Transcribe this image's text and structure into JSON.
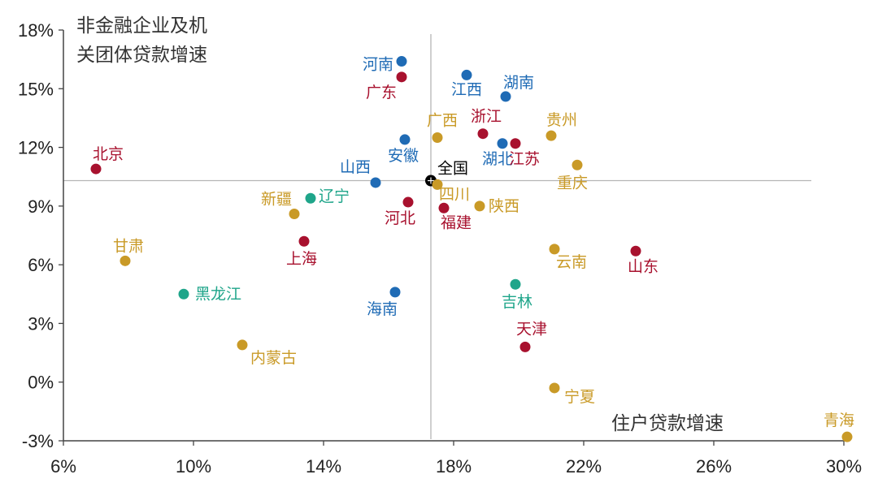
{
  "chart_data": {
    "type": "scatter",
    "title": "",
    "ylabel_lines": [
      "非金融企业及机",
      "关团体贷款增速"
    ],
    "xlabel": "住户贷款增速",
    "xlim": [
      6,
      30
    ],
    "ylim": [
      -3,
      18
    ],
    "xticks": [
      6,
      10,
      14,
      18,
      22,
      26,
      30
    ],
    "yticks": [
      -3,
      0,
      3,
      6,
      9,
      12,
      15,
      18
    ],
    "x_unit": "%",
    "y_unit": "%",
    "grid": false,
    "reference_lines": {
      "x": 17.3,
      "y": 10.3
    },
    "colors": {
      "blue": "#1f6bb5",
      "red": "#a8112e",
      "gold": "#c99a27",
      "teal": "#1fa58a",
      "black": "#000000"
    },
    "points": [
      {
        "label": "河南",
        "x": 16.4,
        "y": 16.4,
        "color": "blue"
      },
      {
        "label": "广东",
        "x": 16.4,
        "y": 15.6,
        "color": "red"
      },
      {
        "label": "江西",
        "x": 18.4,
        "y": 15.7,
        "color": "blue"
      },
      {
        "label": "湖南",
        "x": 19.6,
        "y": 14.6,
        "color": "blue"
      },
      {
        "label": "浙江",
        "x": 18.9,
        "y": 12.7,
        "color": "red"
      },
      {
        "label": "广西",
        "x": 17.5,
        "y": 12.5,
        "color": "gold"
      },
      {
        "label": "贵州",
        "x": 21.0,
        "y": 12.6,
        "color": "gold"
      },
      {
        "label": "湖北",
        "x": 19.5,
        "y": 12.2,
        "color": "blue"
      },
      {
        "label": "江苏",
        "x": 19.9,
        "y": 12.2,
        "color": "red"
      },
      {
        "label": "安徽",
        "x": 16.5,
        "y": 12.4,
        "color": "blue"
      },
      {
        "label": "北京",
        "x": 7.0,
        "y": 10.9,
        "color": "red"
      },
      {
        "label": "重庆",
        "x": 21.8,
        "y": 11.1,
        "color": "gold"
      },
      {
        "label": "山西",
        "x": 15.6,
        "y": 10.2,
        "color": "blue"
      },
      {
        "label": "全国",
        "x": 17.3,
        "y": 10.3,
        "color": "black"
      },
      {
        "label": "四川",
        "x": 17.5,
        "y": 10.1,
        "color": "gold"
      },
      {
        "label": "辽宁",
        "x": 13.6,
        "y": 9.4,
        "color": "teal"
      },
      {
        "label": "新疆",
        "x": 13.1,
        "y": 8.6,
        "color": "gold"
      },
      {
        "label": "河北",
        "x": 16.6,
        "y": 9.2,
        "color": "red"
      },
      {
        "label": "福建",
        "x": 17.7,
        "y": 8.9,
        "color": "red"
      },
      {
        "label": "陕西",
        "x": 18.8,
        "y": 9.0,
        "color": "gold"
      },
      {
        "label": "上海",
        "x": 13.4,
        "y": 7.2,
        "color": "red"
      },
      {
        "label": "甘肃",
        "x": 7.9,
        "y": 6.2,
        "color": "gold"
      },
      {
        "label": "云南",
        "x": 21.1,
        "y": 6.8,
        "color": "gold"
      },
      {
        "label": "山东",
        "x": 23.6,
        "y": 6.7,
        "color": "red"
      },
      {
        "label": "吉林",
        "x": 19.9,
        "y": 5.0,
        "color": "teal"
      },
      {
        "label": "黑龙江",
        "x": 9.7,
        "y": 4.5,
        "color": "teal"
      },
      {
        "label": "海南",
        "x": 16.2,
        "y": 4.6,
        "color": "blue"
      },
      {
        "label": "天津",
        "x": 20.2,
        "y": 1.8,
        "color": "red"
      },
      {
        "label": "内蒙古",
        "x": 11.5,
        "y": 1.9,
        "color": "gold"
      },
      {
        "label": "宁夏",
        "x": 21.1,
        "y": -0.3,
        "color": "gold"
      },
      {
        "label": "青海",
        "x": 30.1,
        "y": -2.8,
        "color": "gold"
      }
    ]
  }
}
